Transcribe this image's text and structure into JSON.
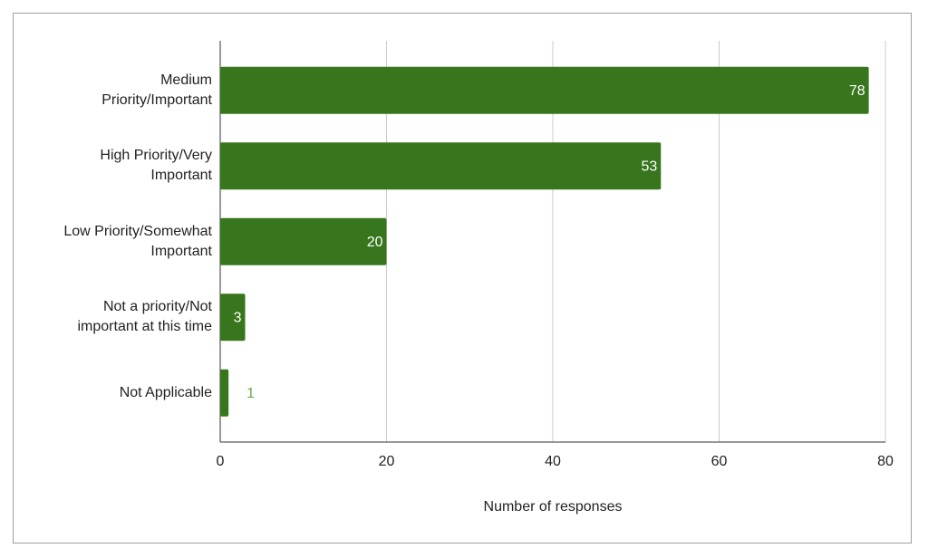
{
  "chart_data": {
    "type": "bar",
    "orientation": "horizontal",
    "categories": [
      "Medium Priority/Important",
      "High Priority/Very Important",
      "Low Priority/Somewhat Important",
      "Not a priority/Not important at this time",
      "Not Applicable"
    ],
    "values": [
      78,
      53,
      20,
      3,
      1
    ],
    "color": "#38761d",
    "xlabel": "Number of responses",
    "xlim": [
      0,
      80
    ],
    "xticks": [
      0,
      20,
      40,
      60,
      80
    ],
    "grid": true
  }
}
